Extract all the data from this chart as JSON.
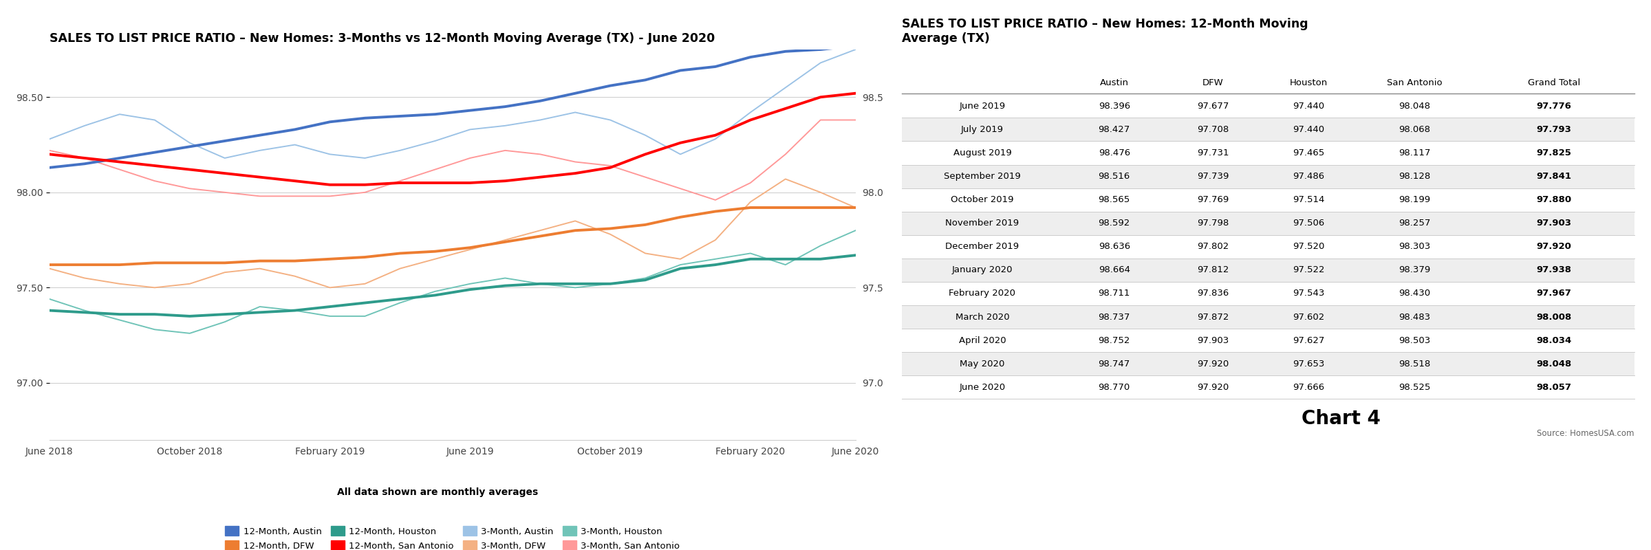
{
  "chart_title": "SALES TO LIST PRICE RATIO – New Homes: 3-Months vs 12-Month Moving Average (TX) - June 2020",
  "table_title": "SALES TO LIST PRICE RATIO – New Homes: 12-Month Moving\nAverage (TX)",
  "subtitle": "All data shown are monthly averages",
  "source": "Source: HomesUSA.com",
  "chart4_label": "Chart 4",
  "x_labels": [
    "June 2018",
    "October 2018",
    "February 2019",
    "June 2019",
    "October 2019",
    "February 2020",
    "June 2020"
  ],
  "y_ticks": [
    97.0,
    97.5,
    98.0,
    98.5
  ],
  "y_lim": [
    96.7,
    98.75
  ],
  "colors": {
    "austin_12": "#4472C4",
    "austin_3": "#9DC3E6",
    "dfw_12": "#ED7D31",
    "dfw_3": "#F4B183",
    "houston_12": "#2E9B8B",
    "houston_3": "#70C4B8",
    "san_antonio_12": "#FF0000",
    "san_antonio_3": "#FF9999"
  },
  "table_rows": [
    [
      "June 2019",
      98.396,
      97.677,
      97.44,
      98.048,
      97.776
    ],
    [
      "July 2019",
      98.427,
      97.708,
      97.44,
      98.068,
      97.793
    ],
    [
      "August 2019",
      98.476,
      97.731,
      97.465,
      98.117,
      97.825
    ],
    [
      "September 2019",
      98.516,
      97.739,
      97.486,
      98.128,
      97.841
    ],
    [
      "October 2019",
      98.565,
      97.769,
      97.514,
      98.199,
      97.88
    ],
    [
      "November 2019",
      98.592,
      97.798,
      97.506,
      98.257,
      97.903
    ],
    [
      "December 2019",
      98.636,
      97.802,
      97.52,
      98.303,
      97.92
    ],
    [
      "January 2020",
      98.664,
      97.812,
      97.522,
      98.379,
      97.938
    ],
    [
      "February 2020",
      98.711,
      97.836,
      97.543,
      98.43,
      97.967
    ],
    [
      "March 2020",
      98.737,
      97.872,
      97.602,
      98.483,
      98.008
    ],
    [
      "April 2020",
      98.752,
      97.903,
      97.627,
      98.503,
      98.034
    ],
    [
      "May 2020",
      98.747,
      97.92,
      97.653,
      98.518,
      98.048
    ],
    [
      "June 2020",
      98.77,
      97.92,
      97.666,
      98.525,
      98.057
    ]
  ],
  "table_cols": [
    "",
    "Austin",
    "DFW",
    "Houston",
    "San Antonio",
    "Grand Total"
  ],
  "austin_12m": [
    98.13,
    98.15,
    98.18,
    98.21,
    98.24,
    98.27,
    98.3,
    98.33,
    98.37,
    98.39,
    98.4,
    98.41,
    98.43,
    98.45,
    98.48,
    98.52,
    98.56,
    98.59,
    98.64,
    98.66,
    98.71,
    98.74,
    98.75,
    98.77
  ],
  "austin_3m": [
    98.28,
    98.35,
    98.41,
    98.38,
    98.26,
    98.18,
    98.22,
    98.25,
    98.2,
    98.18,
    98.22,
    98.27,
    98.33,
    98.35,
    98.38,
    98.42,
    98.38,
    98.3,
    98.2,
    98.28,
    98.42,
    98.55,
    98.68,
    98.75
  ],
  "dfw_12m": [
    97.62,
    97.62,
    97.62,
    97.63,
    97.63,
    97.63,
    97.64,
    97.64,
    97.65,
    97.66,
    97.68,
    97.69,
    97.71,
    97.74,
    97.77,
    97.8,
    97.81,
    97.83,
    97.87,
    97.9,
    97.92,
    97.92,
    97.92,
    97.92
  ],
  "dfw_3m": [
    97.6,
    97.55,
    97.52,
    97.5,
    97.52,
    97.58,
    97.6,
    97.56,
    97.5,
    97.52,
    97.6,
    97.65,
    97.7,
    97.75,
    97.8,
    97.85,
    97.78,
    97.68,
    97.65,
    97.75,
    97.95,
    98.07,
    98.0,
    97.92
  ],
  "houston_12m": [
    97.38,
    97.37,
    97.36,
    97.36,
    97.35,
    97.36,
    97.37,
    97.38,
    97.4,
    97.42,
    97.44,
    97.46,
    97.49,
    97.51,
    97.52,
    97.52,
    97.52,
    97.54,
    97.6,
    97.62,
    97.65,
    97.65,
    97.65,
    97.67
  ],
  "houston_3m": [
    97.44,
    97.38,
    97.33,
    97.28,
    97.26,
    97.32,
    97.4,
    97.38,
    97.35,
    97.35,
    97.42,
    97.48,
    97.52,
    97.55,
    97.52,
    97.5,
    97.52,
    97.55,
    97.62,
    97.65,
    97.68,
    97.62,
    97.72,
    97.8
  ],
  "sanantonio_12m": [
    98.2,
    98.18,
    98.16,
    98.14,
    98.12,
    98.1,
    98.08,
    98.06,
    98.04,
    98.04,
    98.05,
    98.05,
    98.05,
    98.06,
    98.08,
    98.1,
    98.13,
    98.2,
    98.26,
    98.3,
    98.38,
    98.44,
    98.5,
    98.52
  ],
  "sanantonio_3m": [
    98.22,
    98.18,
    98.12,
    98.06,
    98.02,
    98.0,
    97.98,
    97.98,
    97.98,
    98.0,
    98.06,
    98.12,
    98.18,
    98.22,
    98.2,
    98.16,
    98.14,
    98.08,
    98.02,
    97.96,
    98.05,
    98.2,
    98.38,
    98.38
  ]
}
